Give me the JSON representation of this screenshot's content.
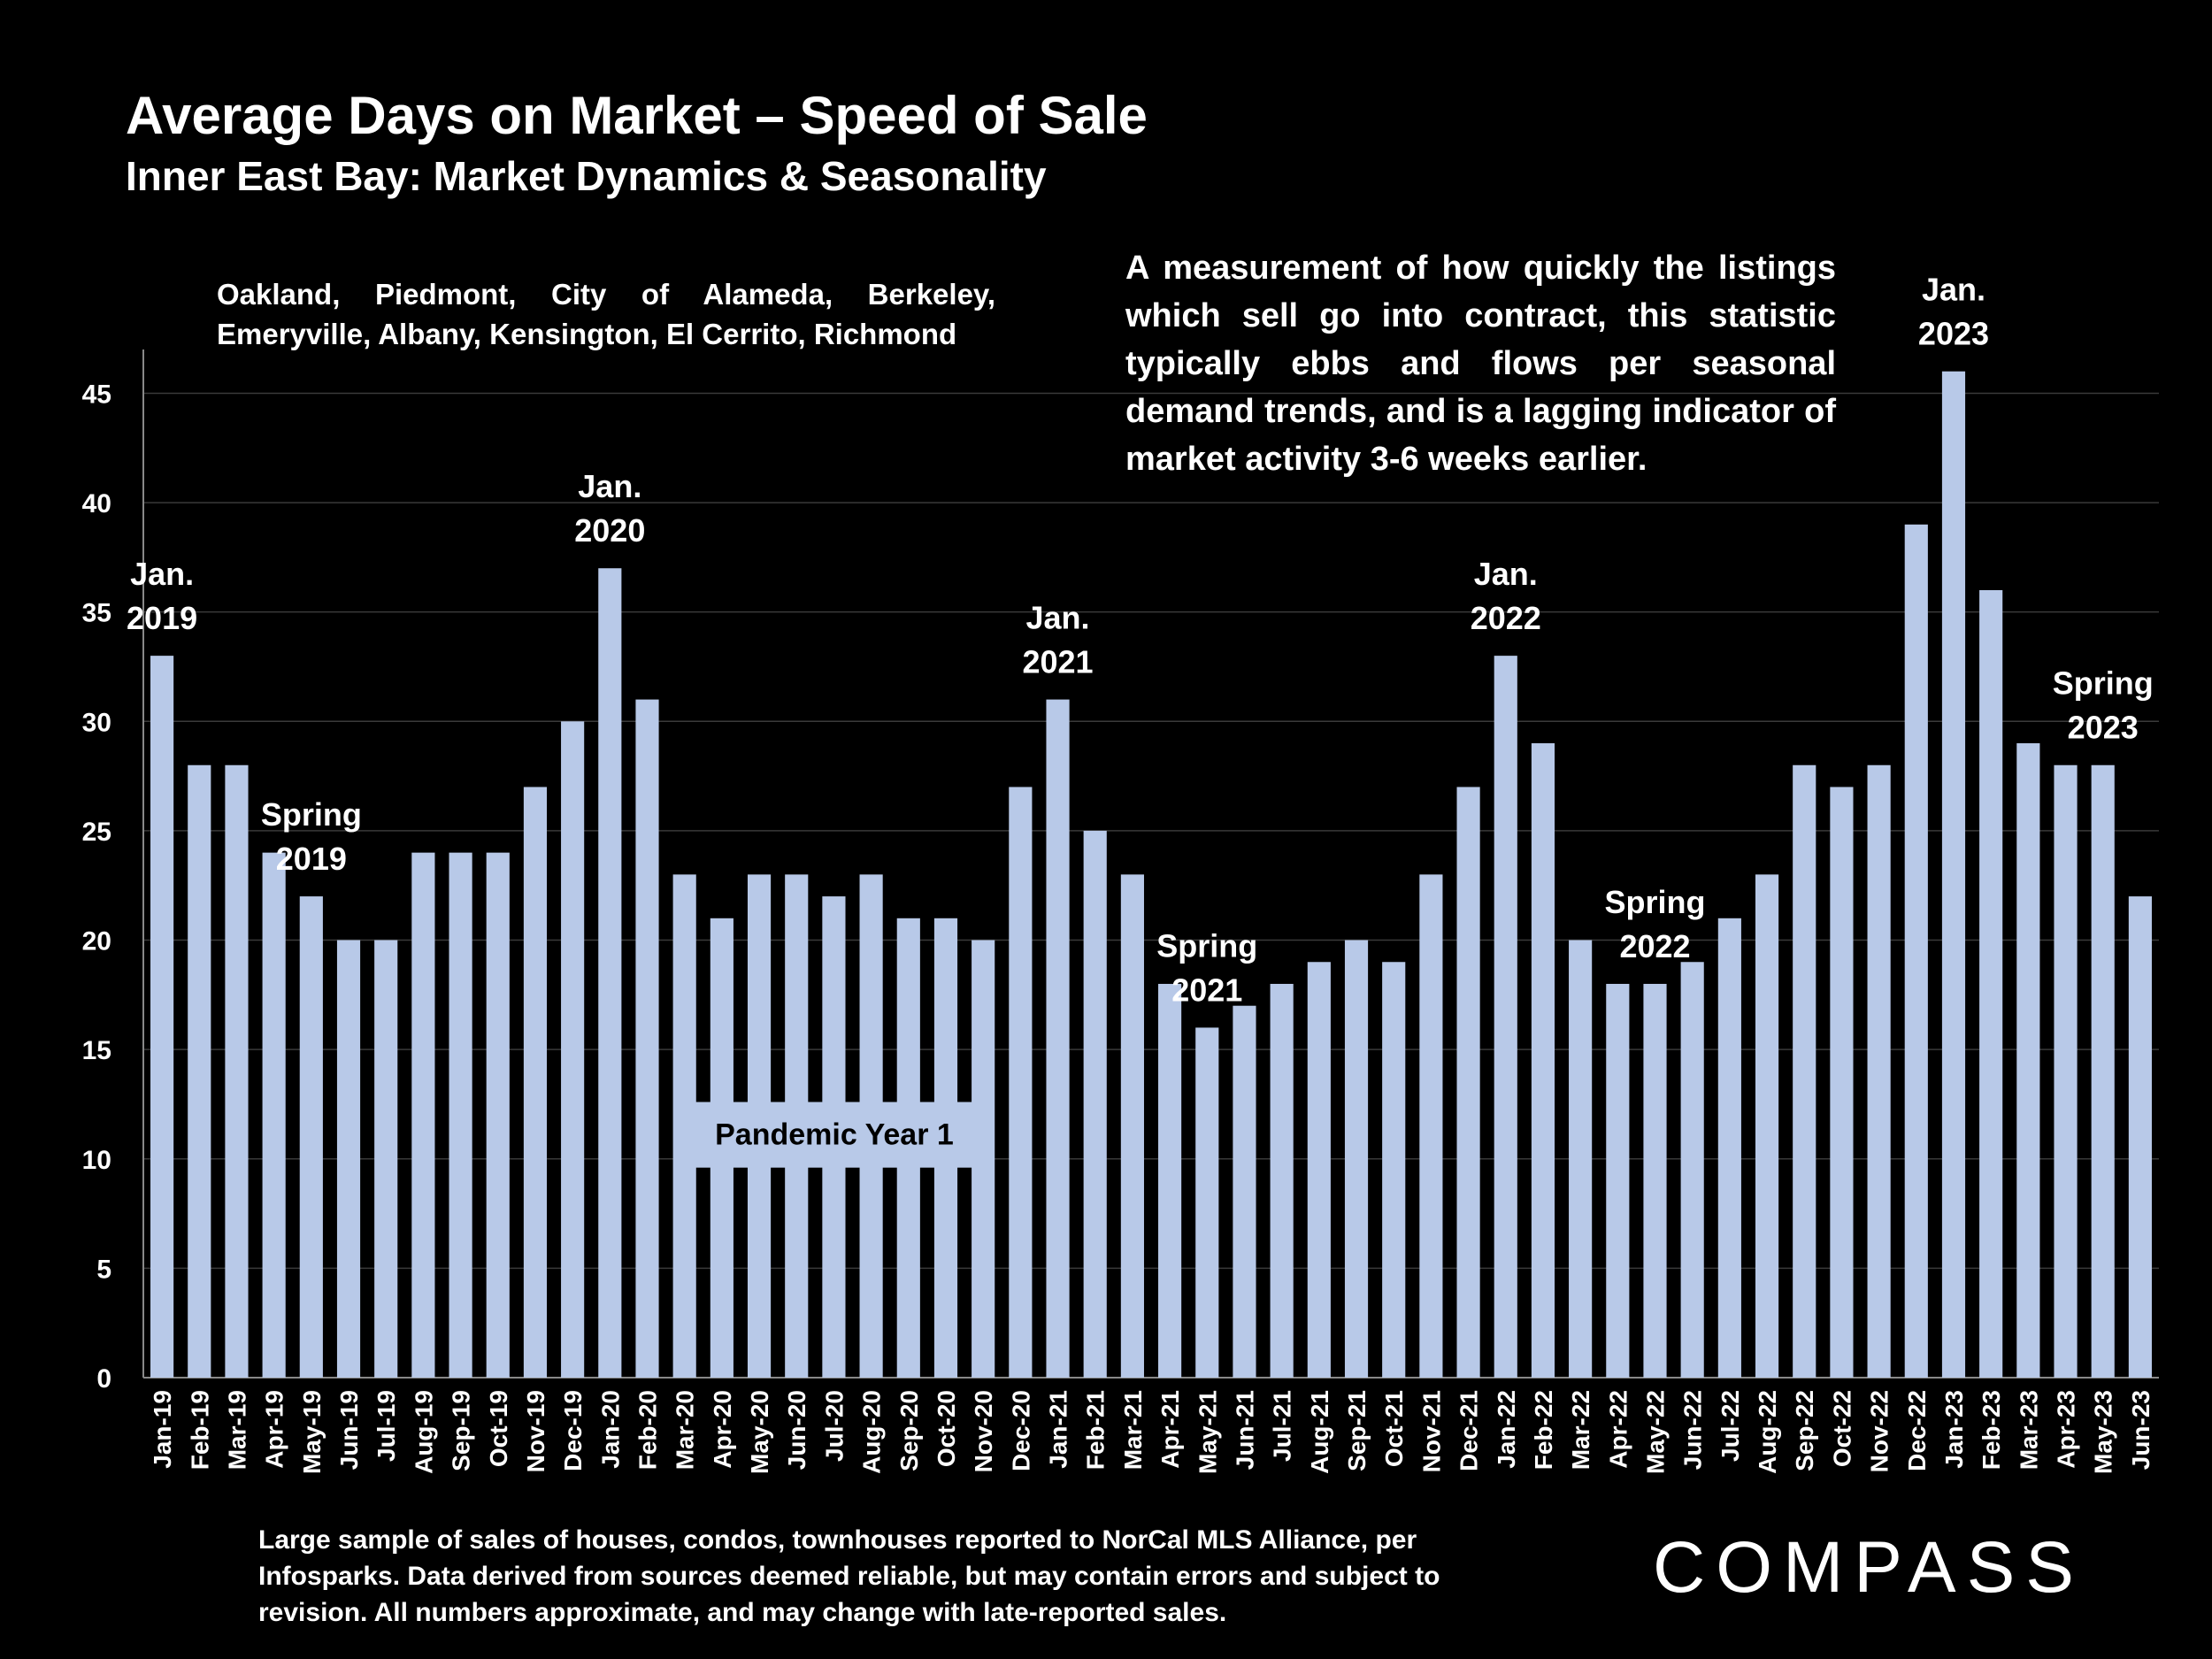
{
  "title": "Average Days on Market – Speed of Sale",
  "subtitle": "Inner East Bay: Market Dynamics & Seasonality",
  "cities_note": "Oakland, Piedmont, City of Alameda, Berkeley, Emeryville, Albany, Kensington, El Cerrito, Richmond",
  "description": "A measurement of how quickly the listings which sell go into contract, this statistic typically ebbs and flows per seasonal demand trends, and is a lagging indicator of market activity 3-6 weeks earlier.",
  "footnote": "Large sample of sales of houses, condos, townhouses reported to NorCal MLS Alliance, per Infosparks. Data derived from sources deemed reliable, but may contain errors and subject to revision. All numbers approximate, and may change with late-reported sales.",
  "logo_text": "COMPASS",
  "colors": {
    "background": "#000000",
    "bar": "#b8c9e8",
    "text": "#ffffff",
    "grid": "#3a3a3a"
  },
  "chart_data": {
    "type": "bar",
    "categories": [
      "Jan-19",
      "Feb-19",
      "Mar-19",
      "Apr-19",
      "May-19",
      "Jun-19",
      "Jul-19",
      "Aug-19",
      "Sep-19",
      "Oct-19",
      "Nov-19",
      "Dec-19",
      "Jan-20",
      "Feb-20",
      "Mar-20",
      "Apr-20",
      "May-20",
      "Jun-20",
      "Jul-20",
      "Aug-20",
      "Sep-20",
      "Oct-20",
      "Nov-20",
      "Dec-20",
      "Jan-21",
      "Feb-21",
      "Mar-21",
      "Apr-21",
      "May-21",
      "Jun-21",
      "Jul-21",
      "Aug-21",
      "Sep-21",
      "Oct-21",
      "Nov-21",
      "Dec-21",
      "Jan-22",
      "Feb-22",
      "Mar-22",
      "Apr-22",
      "May-22",
      "Jun-22",
      "Jul-22",
      "Aug-22",
      "Sep-22",
      "Oct-22",
      "Nov-22",
      "Dec-22",
      "Jan-23",
      "Feb-23",
      "Mar-23",
      "Apr-23",
      "May-23",
      "Jun-23"
    ],
    "values": [
      33,
      28,
      28,
      24,
      22,
      20,
      20,
      24,
      24,
      24,
      27,
      30,
      37,
      31,
      23,
      21,
      23,
      23,
      22,
      23,
      21,
      21,
      20,
      27,
      31,
      25,
      23,
      18,
      16,
      17,
      18,
      19,
      20,
      19,
      23,
      27,
      33,
      29,
      20,
      18,
      18,
      19,
      21,
      23,
      28,
      27,
      28,
      39,
      46,
      36,
      29,
      28,
      28,
      22
    ],
    "ylim": [
      0,
      47
    ],
    "yticks": [
      "0",
      "5",
      "10",
      "15",
      "20",
      "25",
      "30",
      "35",
      "40",
      "45"
    ],
    "grid": true,
    "annotations": [
      {
        "index": 0,
        "lines": [
          "Jan.",
          "2019"
        ]
      },
      {
        "index": 4,
        "lines": [
          "Spring",
          "2019"
        ]
      },
      {
        "index": 12,
        "lines": [
          "Jan.",
          "2020"
        ]
      },
      {
        "index": 24,
        "lines": [
          "Jan.",
          "2021"
        ]
      },
      {
        "index": 28,
        "lines": [
          "Spring",
          "2021"
        ]
      },
      {
        "index": 36,
        "lines": [
          "Jan.",
          "2022"
        ]
      },
      {
        "index": 40,
        "lines": [
          "Spring",
          "2022"
        ]
      },
      {
        "index": 48,
        "lines": [
          "Jan.",
          "2023"
        ]
      },
      {
        "index": 52,
        "lines": [
          "Spring",
          "2023"
        ]
      }
    ],
    "pandemic_label": "Pandemic Year 1"
  }
}
